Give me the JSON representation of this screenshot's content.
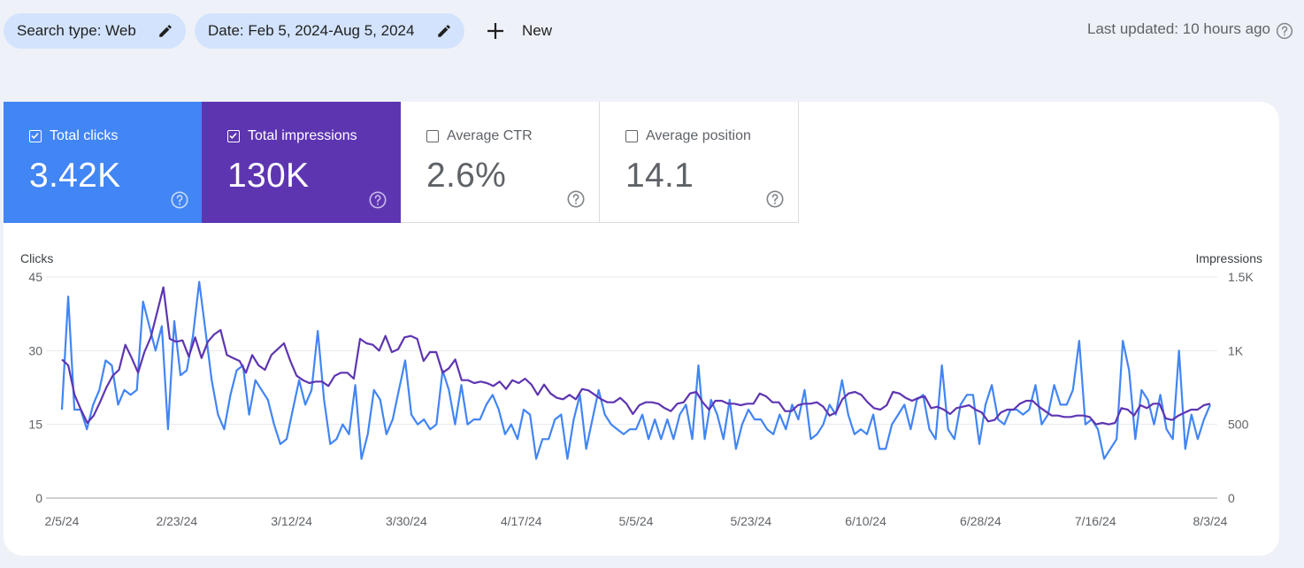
{
  "filters": {
    "search_type": "Search type: Web",
    "date": "Date: Feb 5, 2024-Aug 5, 2024",
    "new_label": "New"
  },
  "last_updated": "Last updated: 10 hours ago",
  "metrics": [
    {
      "label": "Total clicks",
      "value": "3.42K",
      "checked": true,
      "color": "#4285f4"
    },
    {
      "label": "Total impressions",
      "value": "130K",
      "checked": true,
      "color": "#5e35b1"
    },
    {
      "label": "Average CTR",
      "value": "2.6%",
      "checked": false,
      "color": "#ffffff"
    },
    {
      "label": "Average position",
      "value": "14.1",
      "checked": false,
      "color": "#ffffff"
    }
  ],
  "chart_data": {
    "type": "line",
    "ylabel_left": "Clicks",
    "ylabel_right": "Impressions",
    "ylim_left": [
      0,
      45
    ],
    "ylim_right": [
      0,
      1500
    ],
    "yticks_left": [
      "45",
      "30",
      "15",
      "0"
    ],
    "yticks_right": [
      "1.5K",
      "1K",
      "500",
      "0"
    ],
    "xticks": [
      "2/5/24",
      "2/23/24",
      "3/12/24",
      "3/30/24",
      "4/17/24",
      "5/5/24",
      "5/23/24",
      "6/10/24",
      "6/28/24",
      "7/16/24",
      "8/3/24"
    ],
    "grid": true,
    "series": [
      {
        "name": "Clicks",
        "axis": "left",
        "color": "#4285f4",
        "values": [
          18,
          41,
          18,
          18,
          14,
          19,
          22,
          28,
          27,
          19,
          22,
          21,
          22,
          40,
          35,
          30,
          35,
          14,
          36,
          25,
          26,
          33,
          44,
          34,
          24,
          17,
          14,
          21,
          26,
          27,
          17,
          24,
          22,
          20,
          15,
          11,
          12,
          18,
          24,
          19,
          22,
          34,
          20,
          11,
          12,
          15,
          13,
          23,
          8,
          13,
          22,
          20,
          13,
          16,
          22,
          28,
          17,
          15,
          16,
          14,
          15,
          26,
          22,
          15,
          23,
          15,
          16,
          16,
          19,
          21,
          18,
          13,
          15,
          12,
          18,
          17,
          8,
          12,
          12,
          16,
          17,
          8,
          16,
          21,
          10,
          16,
          22,
          17,
          15,
          14,
          13,
          14,
          14,
          17,
          12,
          16,
          12,
          16,
          12,
          17,
          19,
          12,
          27,
          12,
          20,
          17,
          12,
          20,
          10,
          15,
          18,
          16,
          16,
          14,
          13,
          17,
          14,
          19,
          16,
          22,
          12,
          13,
          15,
          19,
          17,
          24,
          17,
          13,
          14,
          13,
          17,
          10,
          10,
          15,
          17,
          19,
          14,
          20,
          21,
          14,
          12,
          27,
          14,
          12,
          19,
          21,
          21,
          11,
          19,
          23,
          16,
          15,
          18,
          18,
          17,
          18,
          23,
          15,
          17,
          23,
          19,
          19,
          22,
          32,
          15,
          16,
          14,
          8,
          10,
          12,
          32,
          26,
          12,
          22,
          20,
          15,
          21,
          14,
          12,
          30,
          10,
          17,
          12,
          16,
          19
        ],
        "area_note": "approximate daily values read from plot"
      },
      {
        "name": "Impressions",
        "axis": "right",
        "color": "#5e35b1",
        "values": [
          940,
          900,
          700,
          600,
          510,
          560,
          650,
          750,
          830,
          870,
          1040,
          950,
          850,
          990,
          1090,
          1260,
          1430,
          1080,
          1060,
          1070,
          960,
          1090,
          950,
          1060,
          1110,
          1140,
          970,
          950,
          930,
          850,
          970,
          900,
          870,
          970,
          1010,
          1050,
          930,
          830,
          800,
          780,
          790,
          790,
          760,
          830,
          850,
          850,
          810,
          1080,
          1050,
          1040,
          1000,
          1100,
          990,
          1010,
          1090,
          1100,
          1080,
          930,
          990,
          990,
          850,
          880,
          940,
          800,
          800,
          780,
          790,
          780,
          760,
          790,
          740,
          800,
          780,
          810,
          770,
          700,
          770,
          710,
          680,
          670,
          700,
          670,
          740,
          730,
          700,
          670,
          650,
          650,
          680,
          640,
          570,
          630,
          650,
          650,
          640,
          610,
          590,
          640,
          650,
          710,
          720,
          650,
          600,
          660,
          660,
          640,
          640,
          630,
          640,
          640,
          710,
          690,
          650,
          650,
          590,
          590,
          630,
          640,
          640,
          650,
          620,
          560,
          580,
          670,
          710,
          720,
          700,
          650,
          610,
          600,
          630,
          720,
          710,
          680,
          660,
          680,
          690,
          610,
          620,
          600,
          570,
          610,
          620,
          630,
          600,
          580,
          520,
          530,
          580,
          600,
          600,
          640,
          660,
          660,
          620,
          590,
          560,
          560,
          550,
          550,
          560,
          560,
          550,
          500,
          510,
          500,
          510,
          610,
          600,
          560,
          630,
          610,
          640,
          640,
          540,
          530,
          560,
          580,
          600,
          600,
          630,
          640
        ],
        "area_note": "approximate daily values read from plot"
      }
    ]
  }
}
